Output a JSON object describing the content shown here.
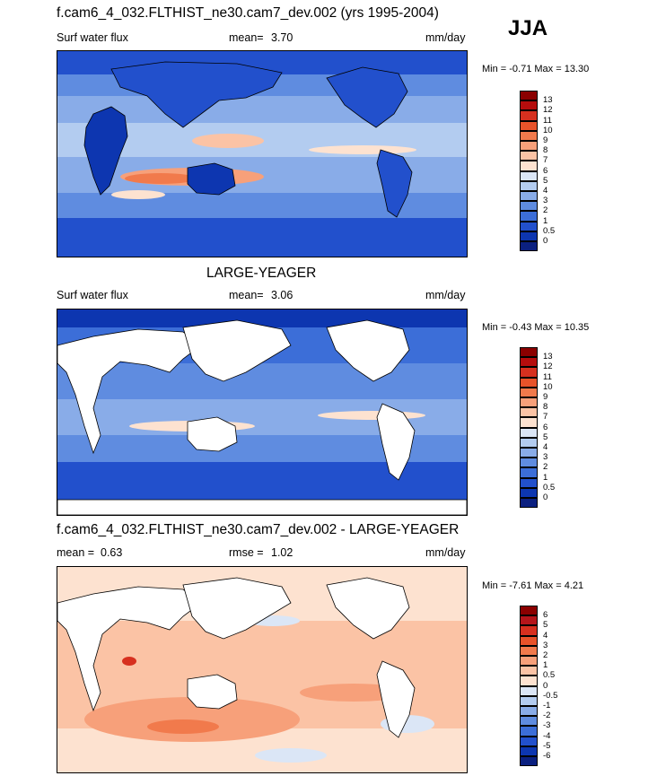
{
  "season": "JJA",
  "panels": [
    {
      "title": "f.cam6_4_032.FLTHIST_ne30.cam7_dev.002 (yrs 1995-2004)",
      "left_label": "Surf water flux",
      "stat_label": "mean=",
      "stat_value": "3.70",
      "units": "mm/day",
      "minmax": "Min =  -0.71 Max =  13.30",
      "colorbar_labels": [
        "13",
        "12",
        "11",
        "10",
        "9",
        "8",
        "7",
        "6",
        "5",
        "4",
        "3",
        "2",
        "1",
        "0.5",
        "0"
      ],
      "colorbar_colors": [
        "#8b0000",
        "#b50d0d",
        "#d7301f",
        "#e8532a",
        "#f17a4c",
        "#f7a07a",
        "#fbc3a5",
        "#fde2d0",
        "#dbe6f6",
        "#b3ccf0",
        "#89ace8",
        "#5f8ce0",
        "#3c6ed8",
        "#2250cc",
        "#0d36b0",
        "#0b2080"
      ]
    },
    {
      "title": "LARGE-YEAGER",
      "left_label": "Surf water flux",
      "stat_label": "mean=",
      "stat_value": "3.06",
      "units": "mm/day",
      "minmax": "Min =  -0.43 Max =  10.35",
      "colorbar_labels": [
        "13",
        "12",
        "11",
        "10",
        "9",
        "8",
        "7",
        "6",
        "5",
        "4",
        "3",
        "2",
        "1",
        "0.5",
        "0"
      ],
      "colorbar_colors": [
        "#8b0000",
        "#b50d0d",
        "#d7301f",
        "#e8532a",
        "#f17a4c",
        "#f7a07a",
        "#fbc3a5",
        "#fde2d0",
        "#dbe6f6",
        "#b3ccf0",
        "#89ace8",
        "#5f8ce0",
        "#3c6ed8",
        "#2250cc",
        "#0d36b0",
        "#0b2080"
      ]
    },
    {
      "title": "f.cam6_4_032.FLTHIST_ne30.cam7_dev.002 - LARGE-YEAGER",
      "left_label": "mean =",
      "left_value": "0.63",
      "stat_label": "rmse =",
      "stat_value": "1.02",
      "units": "mm/day",
      "minmax": "Min =  -7.61 Max =   4.21",
      "colorbar_labels": [
        "6",
        "5",
        "4",
        "3",
        "2",
        "1",
        "0.5",
        "0",
        "-0.5",
        "-1",
        "-2",
        "-3",
        "-4",
        "-5",
        "-6"
      ],
      "colorbar_colors": [
        "#8b0000",
        "#b5151a",
        "#d7301f",
        "#e8532a",
        "#f17a4c",
        "#f7a07a",
        "#fbc3a5",
        "#fde2d0",
        "#dbe6f6",
        "#b3ccf0",
        "#89ace8",
        "#5f8ce0",
        "#3c6ed8",
        "#2250cc",
        "#0d36b0",
        "#0b2080"
      ]
    }
  ]
}
